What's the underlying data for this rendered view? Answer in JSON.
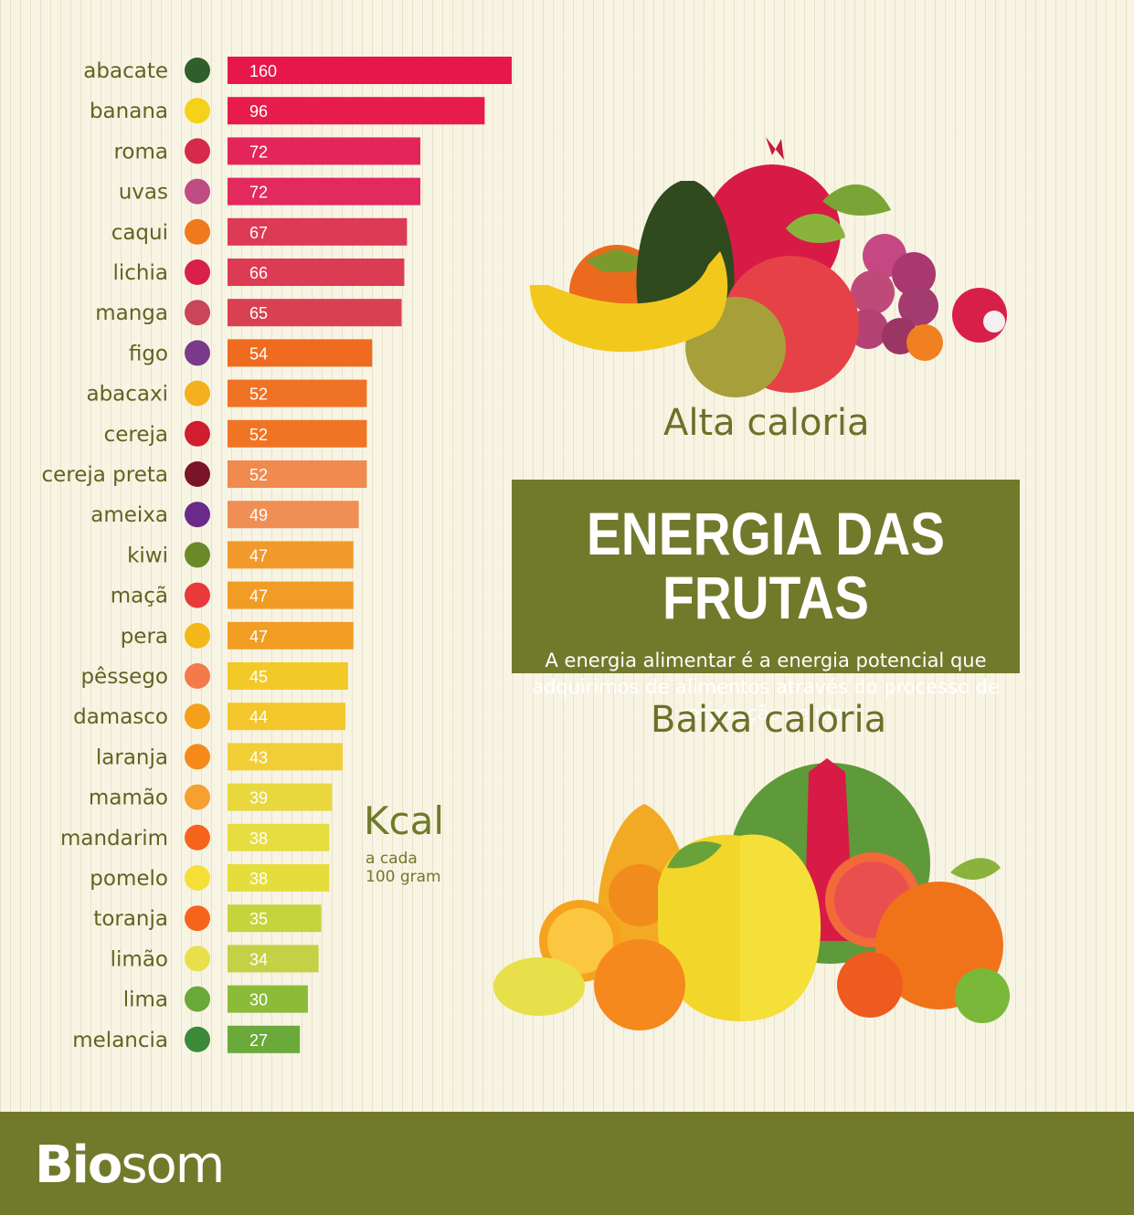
{
  "chart_data": {
    "type": "bar",
    "orientation": "horizontal",
    "categories": [
      "abacate",
      "banana",
      "roma",
      "uvas",
      "caqui",
      "lichia",
      "manga",
      "figo",
      "abacaxi",
      "cereja",
      "cereja preta",
      "ameixa",
      "kiwi",
      "maçã",
      "pera",
      "pêssego",
      "damasco",
      "laranja",
      "mamão",
      "mandarim",
      "pomelo",
      "toranja",
      "limão",
      "lima",
      "melancia"
    ],
    "values": [
      160,
      96,
      72,
      72,
      67,
      66,
      65,
      54,
      52,
      52,
      52,
      49,
      47,
      47,
      47,
      45,
      44,
      43,
      39,
      38,
      38,
      35,
      34,
      30,
      27
    ],
    "colors": [
      "#e8174b",
      "#e81c4b",
      "#e3265a",
      "#e22a5e",
      "#dc3a55",
      "#dc3c53",
      "#d94152",
      "#ee6b1f",
      "#f07224",
      "#f07424",
      "#f08a4e",
      "#f08f55",
      "#f19a2b",
      "#f19c25",
      "#f19e22",
      "#f3c928",
      "#f3c72b",
      "#f2ce36",
      "#e8d83e",
      "#e6dd41",
      "#e5dd3c",
      "#c5d43d",
      "#c4d146",
      "#8cbb3a",
      "#6aa93a"
    ],
    "xlim": [
      0,
      160
    ],
    "unit_label": "Kcal",
    "unit_sub": "a cada\n100 gram"
  },
  "icons": [
    "avocado-icon",
    "banana-icon",
    "pomegranate-icon",
    "grapes-icon",
    "persimmon-icon",
    "lychee-icon",
    "mango-icon",
    "fig-icon",
    "pineapple-icon",
    "cherry-icon",
    "black-cherry-icon",
    "plum-icon",
    "kiwi-icon",
    "apple-icon",
    "pear-icon",
    "peach-icon",
    "apricot-icon",
    "orange-icon",
    "papaya-icon",
    "mandarin-icon",
    "pomelo-icon",
    "grapefruit-icon",
    "lemon-icon",
    "lime-icon",
    "watermelon-icon"
  ],
  "icon_colors": [
    "#2f5f2a",
    "#f5d11a",
    "#d62a4a",
    "#c04c84",
    "#ef7a1c",
    "#d8204a",
    "#c8455a",
    "#7a3a8a",
    "#f5b020",
    "#d01e2e",
    "#7a1428",
    "#6a2a8a",
    "#6a8a2a",
    "#e83a3a",
    "#f5b81a",
    "#f57a4a",
    "#f5a01a",
    "#f58a1a",
    "#f5a030",
    "#f5641a",
    "#f5e03a",
    "#f5641a",
    "#e8e04a",
    "#6aa83a",
    "#3a8a3a"
  ],
  "high_label": "Alta caloria",
  "low_label": "Baixa caloria",
  "info": {
    "title": "ENERGIA DAS FRUTAS",
    "desc": "A energia alimentar é a energia potencial que adquirimos de alimentos através do processo de respiração celular"
  },
  "brand": {
    "bold": "Bio",
    "light": "som"
  }
}
